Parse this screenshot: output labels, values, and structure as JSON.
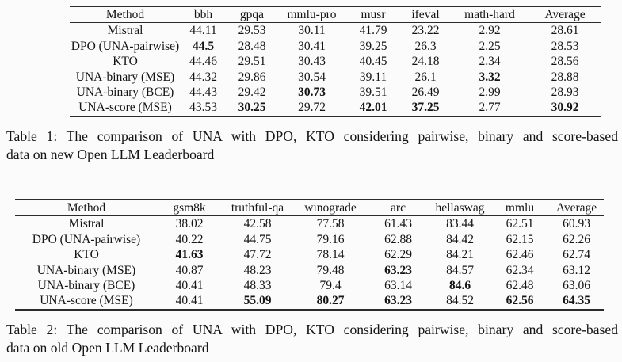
{
  "colors": {
    "background": "#fbfbfb",
    "text": "#141414",
    "rule": "#2b2b2b"
  },
  "tables": [
    {
      "caption_line1": "Table 1: The comparison of UNA with DPO, KTO considering pairwise, binary and score-based",
      "caption_line2": "data on new Open LLM Leaderboard",
      "columns": [
        "Method",
        "bbh",
        "gpqa",
        "mmlu-pro",
        "musr",
        "ifeval",
        "math-hard",
        "Average"
      ],
      "rows": [
        {
          "cells": [
            "Mistral",
            "44.11",
            "29.53",
            "30.11",
            "41.79",
            "23.22",
            "2.92",
            "28.61"
          ],
          "bold": []
        },
        {
          "cells": [
            "DPO (UNA-pairwise)",
            "44.5",
            "28.48",
            "30.41",
            "39.25",
            "26.3",
            "2.25",
            "28.53"
          ],
          "bold": [
            1
          ]
        },
        {
          "cells": [
            "KTO",
            "44.46",
            "29.51",
            "30.43",
            "40.45",
            "24.18",
            "2.34",
            "28.56"
          ],
          "bold": []
        },
        {
          "cells": [
            "UNA-binary (MSE)",
            "44.32",
            "29.86",
            "30.54",
            "39.11",
            "26.1",
            "3.32",
            "28.88"
          ],
          "bold": [
            6
          ]
        },
        {
          "cells": [
            "UNA-binary (BCE)",
            "44.43",
            "29.42",
            "30.73",
            "39.51",
            "26.49",
            "2.99",
            "28.93"
          ],
          "bold": [
            3
          ]
        },
        {
          "cells": [
            "UNA-score (MSE)",
            "43.53",
            "30.25",
            "29.72",
            "42.01",
            "37.25",
            "2.77",
            "30.92"
          ],
          "bold": [
            2,
            4,
            5,
            7
          ]
        }
      ]
    },
    {
      "caption_line1": "Table 2: The comparison of UNA with DPO, KTO considering pairwise, binary and score-based",
      "caption_line2": "data on old Open LLM Leaderboard",
      "columns": [
        "Method",
        "gsm8k",
        "truthful-qa",
        "winograde",
        "arc",
        "hellaswag",
        "mmlu",
        "Average"
      ],
      "rows": [
        {
          "cells": [
            "Mistral",
            "38.02",
            "42.58",
            "77.58",
            "61.43",
            "83.44",
            "62.51",
            "60.93"
          ],
          "bold": []
        },
        {
          "cells": [
            "DPO (UNA-pairwise)",
            "40.22",
            "44.75",
            "79.16",
            "62.88",
            "84.42",
            "62.15",
            "62.26"
          ],
          "bold": []
        },
        {
          "cells": [
            "KTO",
            "41.63",
            "47.72",
            "78.14",
            "62.29",
            "84.21",
            "62.46",
            "62.74"
          ],
          "bold": [
            1
          ]
        },
        {
          "cells": [
            "UNA-binary (MSE)",
            "40.87",
            "48.23",
            "79.48",
            "63.23",
            "84.57",
            "62.34",
            "63.12"
          ],
          "bold": [
            4
          ]
        },
        {
          "cells": [
            "UNA-binary (BCE)",
            "40.41",
            "48.33",
            "79.4",
            "63.14",
            "84.6",
            "62.48",
            "63.06"
          ],
          "bold": [
            5
          ]
        },
        {
          "cells": [
            "UNA-score (MSE)",
            "40.41",
            "55.09",
            "80.27",
            "63.23",
            "84.52",
            "62.56",
            "64.35"
          ],
          "bold": [
            2,
            3,
            4,
            6,
            7
          ]
        }
      ]
    }
  ]
}
